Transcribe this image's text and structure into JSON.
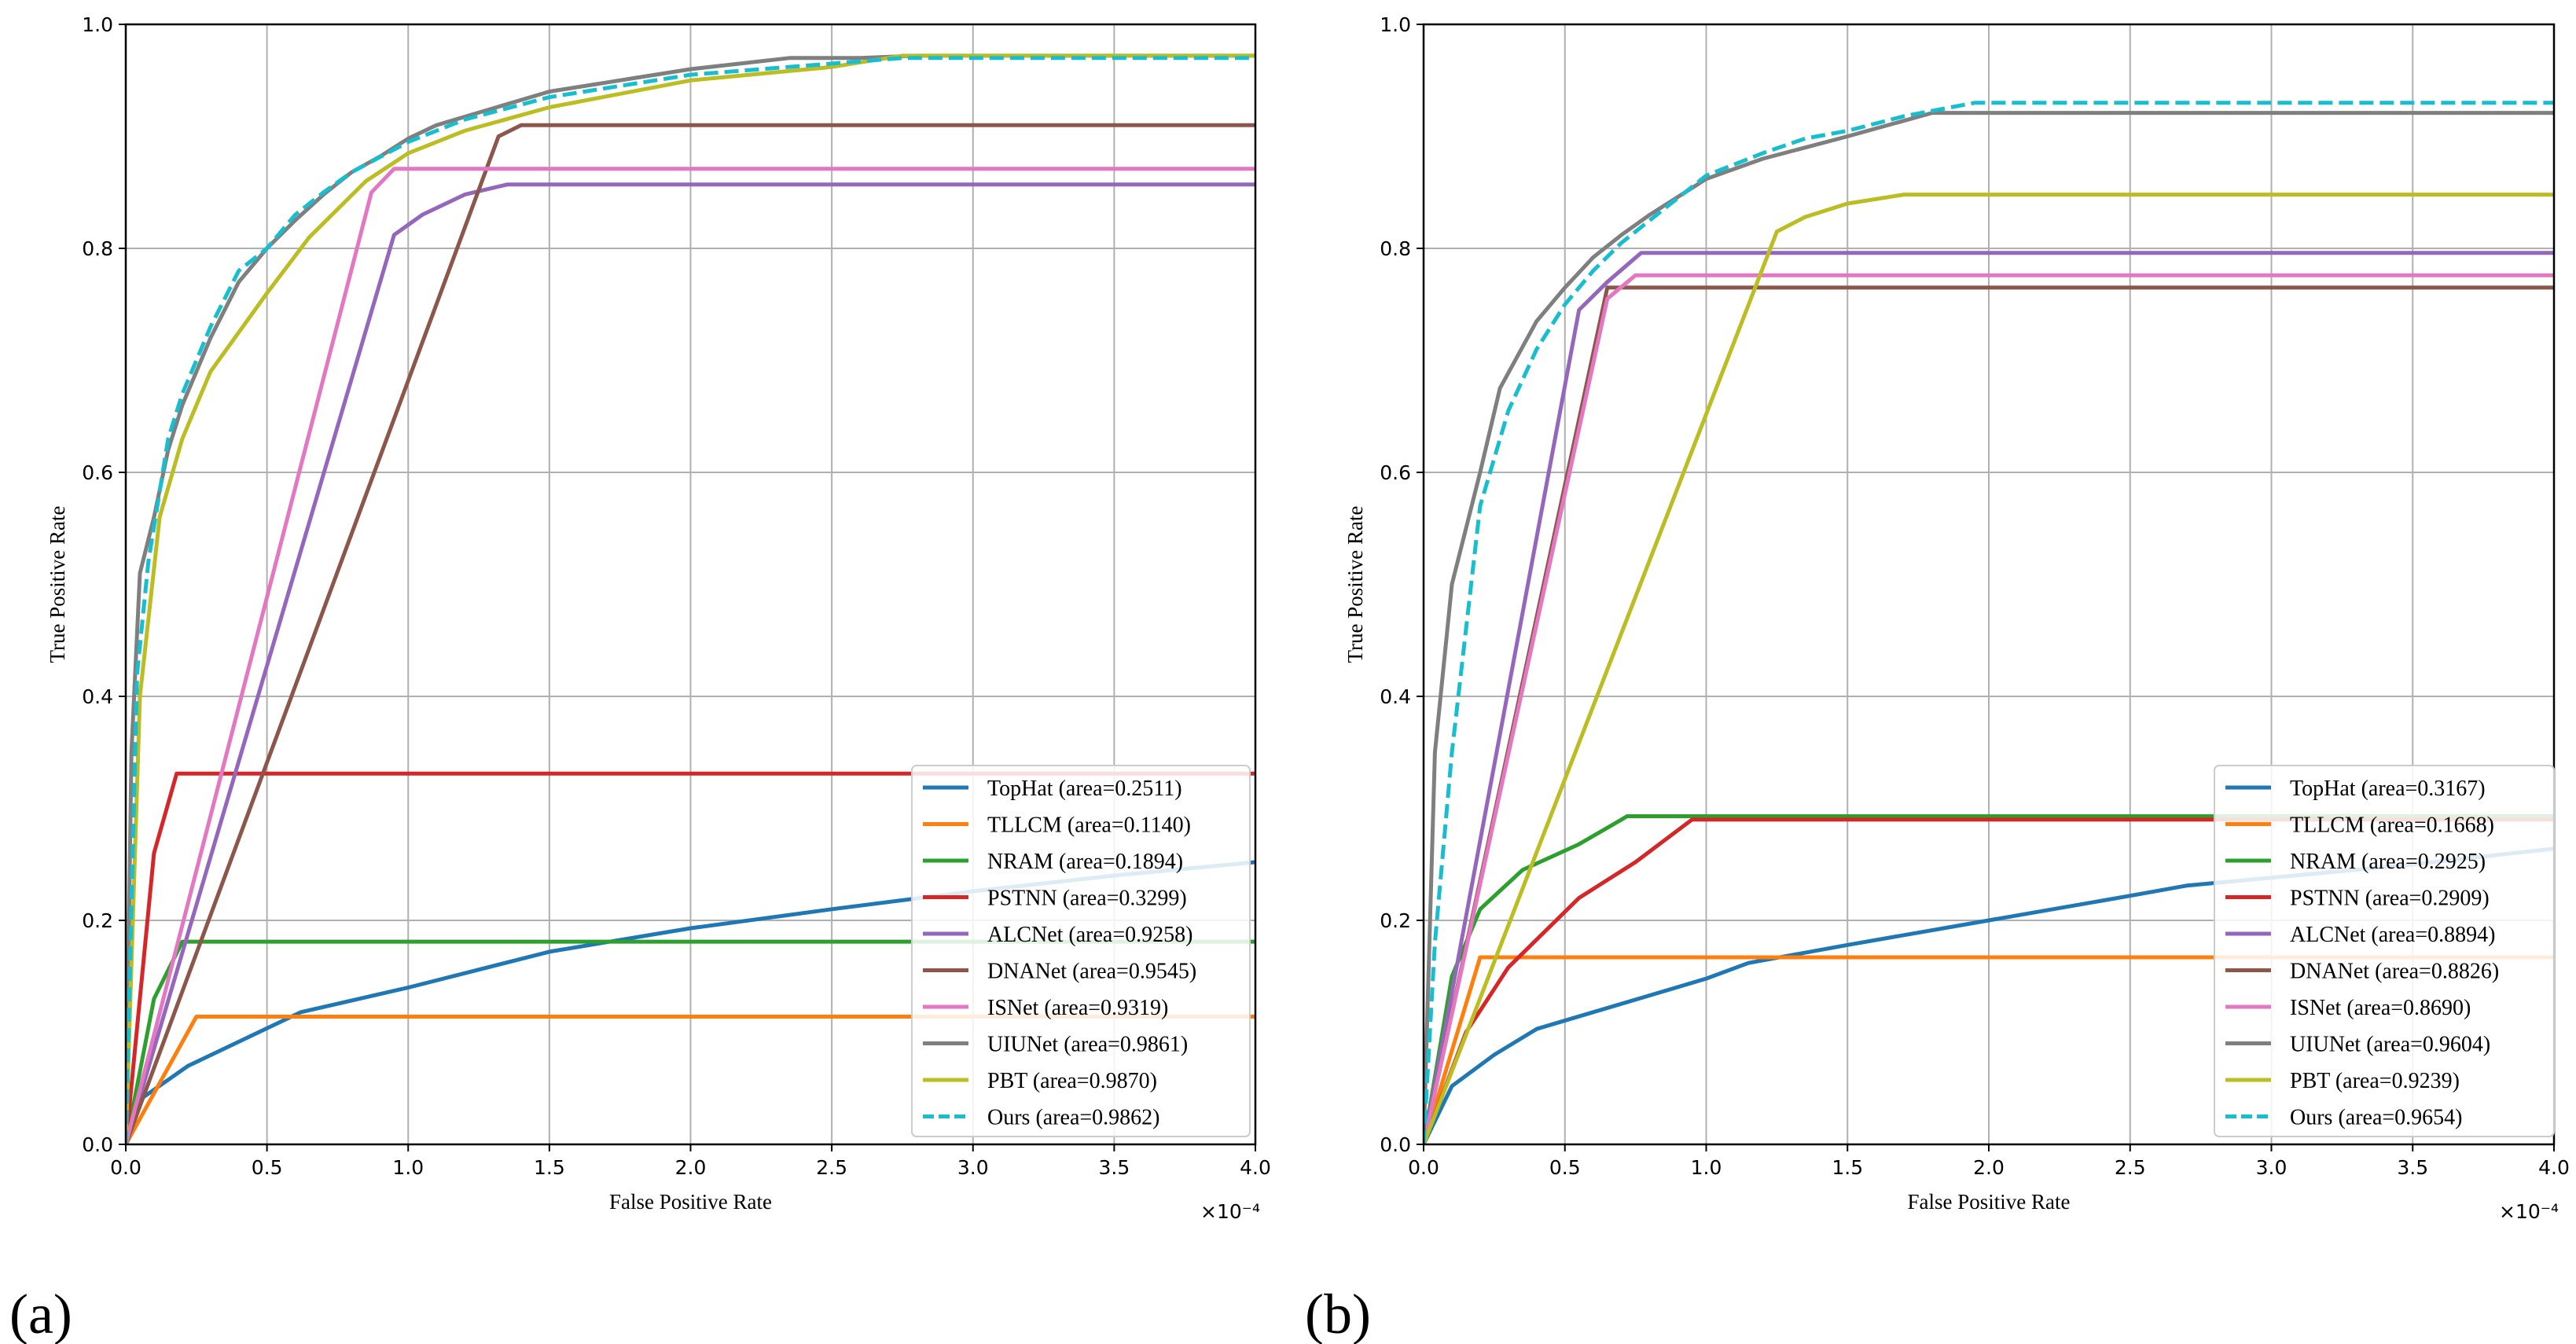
{
  "colors": {
    "TopHat": "#1f77b4",
    "TLLCM": "#ff7f0e",
    "NRAM": "#2ca02c",
    "PSTNN": "#d62728",
    "ALCNet": "#9467bd",
    "DNANet": "#8c564b",
    "ISNet": "#e377c2",
    "UIUNet": "#7f7f7f",
    "PBT": "#bcbd22",
    "Ours": "#17becf"
  },
  "chart_data": [
    {
      "panel": "(a)",
      "type": "line",
      "xlabel": "False Positive Rate",
      "ylabel": "True Positive Rate",
      "x_scale_note": "×10⁻⁴",
      "xlim": [
        0,
        4.0
      ],
      "ylim": [
        0,
        1.0
      ],
      "xticks": [
        "0.0",
        "0.5",
        "1.0",
        "1.5",
        "2.0",
        "2.5",
        "3.0",
        "3.5",
        "4.0"
      ],
      "yticks": [
        "0.0",
        "0.2",
        "0.4",
        "0.6",
        "0.8",
        "1.0"
      ],
      "grid": true,
      "legend_position": "lower-right",
      "series": [
        {
          "name": "TopHat",
          "label": "TopHat (area=0.2511)",
          "x": [
            0,
            0.05,
            0.22,
            0.62,
            1.0,
            1.5,
            2.0,
            2.5,
            3.0,
            3.5,
            4.0
          ],
          "y": [
            0,
            0.04,
            0.07,
            0.118,
            0.14,
            0.172,
            0.193,
            0.21,
            0.226,
            0.24,
            0.252
          ]
        },
        {
          "name": "TLLCM",
          "label": "TLLCM (area=0.1140)",
          "x": [
            0,
            0.25,
            4.0
          ],
          "y": [
            0,
            0.114,
            0.114
          ]
        },
        {
          "name": "NRAM",
          "label": "NRAM (area=0.1894)",
          "x": [
            0,
            0.1,
            0.2,
            4.0
          ],
          "y": [
            0,
            0.13,
            0.181,
            0.181
          ]
        },
        {
          "name": "PSTNN",
          "label": "PSTNN (area=0.3299)",
          "x": [
            0,
            0.1,
            0.18,
            4.0
          ],
          "y": [
            0,
            0.26,
            0.331,
            0.331
          ]
        },
        {
          "name": "ALCNet",
          "label": "ALCNet (area=0.9258)",
          "x": [
            0,
            0.95,
            1.05,
            1.2,
            1.35,
            4.0
          ],
          "y": [
            0,
            0.812,
            0.83,
            0.848,
            0.857,
            0.857
          ]
        },
        {
          "name": "DNANet",
          "label": "DNANet (area=0.9545)",
          "x": [
            0,
            1.32,
            1.4,
            4.0
          ],
          "y": [
            0,
            0.9,
            0.91,
            0.91
          ]
        },
        {
          "name": "ISNet",
          "label": "ISNet (area=0.9319)",
          "x": [
            0,
            0.87,
            0.95,
            4.0
          ],
          "y": [
            0,
            0.85,
            0.871,
            0.871
          ]
        },
        {
          "name": "UIUNet",
          "label": "UIUNet (area=0.9861)",
          "x": [
            0,
            0.02,
            0.05,
            0.1,
            0.15,
            0.2,
            0.3,
            0.4,
            0.5,
            0.6,
            0.7,
            0.8,
            0.9,
            1.0,
            1.1,
            1.3,
            1.5,
            1.8,
            2.0,
            2.35,
            2.6,
            2.8,
            4.0
          ],
          "y": [
            0,
            0.35,
            0.51,
            0.56,
            0.62,
            0.66,
            0.72,
            0.77,
            0.8,
            0.825,
            0.848,
            0.868,
            0.882,
            0.898,
            0.91,
            0.925,
            0.94,
            0.952,
            0.96,
            0.97,
            0.97,
            0.972,
            0.972
          ]
        },
        {
          "name": "PBT",
          "label": "PBT (area=0.9870)",
          "x": [
            0,
            0.05,
            0.12,
            0.2,
            0.3,
            0.5,
            0.65,
            0.85,
            1.0,
            1.2,
            1.5,
            2.0,
            2.5,
            2.75,
            4.0
          ],
          "y": [
            0,
            0.4,
            0.56,
            0.63,
            0.69,
            0.76,
            0.81,
            0.86,
            0.885,
            0.905,
            0.926,
            0.95,
            0.962,
            0.972,
            0.972
          ]
        },
        {
          "name": "Ours",
          "label": "Ours (area=0.9862)",
          "x": [
            0,
            0.04,
            0.08,
            0.15,
            0.2,
            0.3,
            0.4,
            0.5,
            0.6,
            0.7,
            0.8,
            1.0,
            1.2,
            1.5,
            2.0,
            2.5,
            2.75,
            4.0
          ],
          "y": [
            0,
            0.42,
            0.52,
            0.63,
            0.67,
            0.73,
            0.78,
            0.8,
            0.83,
            0.85,
            0.868,
            0.895,
            0.915,
            0.935,
            0.955,
            0.965,
            0.97,
            0.97
          ]
        }
      ]
    },
    {
      "panel": "(b)",
      "type": "line",
      "xlabel": "False Positive Rate",
      "ylabel": "True Positive Rate",
      "x_scale_note": "×10⁻⁴",
      "xlim": [
        0,
        4.0
      ],
      "ylim": [
        0,
        1.0
      ],
      "xticks": [
        "0.0",
        "0.5",
        "1.0",
        "1.5",
        "2.0",
        "2.5",
        "3.0",
        "3.5",
        "4.0"
      ],
      "yticks": [
        "0.0",
        "0.2",
        "0.4",
        "0.6",
        "0.8",
        "1.0"
      ],
      "grid": true,
      "legend_position": "lower-right",
      "series": [
        {
          "name": "TopHat",
          "label": "TopHat (area=0.3167)",
          "x": [
            0,
            0.1,
            0.25,
            0.4,
            0.6,
            0.8,
            1.0,
            1.15,
            1.5,
            2.0,
            2.5,
            2.7,
            3.0,
            3.5,
            4.0
          ],
          "y": [
            0,
            0.052,
            0.08,
            0.103,
            0.118,
            0.133,
            0.148,
            0.162,
            0.178,
            0.2,
            0.222,
            0.231,
            0.238,
            0.25,
            0.264
          ]
        },
        {
          "name": "TLLCM",
          "label": "TLLCM (area=0.1668)",
          "x": [
            0,
            0.2,
            4.0
          ],
          "y": [
            0,
            0.167,
            0.167
          ]
        },
        {
          "name": "NRAM",
          "label": "NRAM (area=0.2925)",
          "x": [
            0,
            0.1,
            0.2,
            0.35,
            0.55,
            0.7,
            0.72,
            4.0
          ],
          "y": [
            0,
            0.15,
            0.21,
            0.245,
            0.268,
            0.29,
            0.293,
            0.293
          ]
        },
        {
          "name": "PSTNN",
          "label": "PSTNN (area=0.2909)",
          "x": [
            0,
            0.15,
            0.3,
            0.55,
            0.75,
            0.95,
            4.0
          ],
          "y": [
            0,
            0.1,
            0.158,
            0.22,
            0.252,
            0.29,
            0.29
          ]
        },
        {
          "name": "ALCNet",
          "label": "ALCNet (area=0.8894)",
          "x": [
            0,
            0.55,
            0.65,
            0.77,
            4.0
          ],
          "y": [
            0,
            0.745,
            0.77,
            0.796,
            0.796
          ]
        },
        {
          "name": "DNANet",
          "label": "DNANet (area=0.8826)",
          "x": [
            0,
            0.65,
            4.0
          ],
          "y": [
            0,
            0.765,
            0.765
          ]
        },
        {
          "name": "ISNet",
          "label": "ISNet (area=0.8690)",
          "x": [
            0,
            0.65,
            0.75,
            4.0
          ],
          "y": [
            0,
            0.755,
            0.776,
            0.776
          ]
        },
        {
          "name": "UIUNet",
          "label": "UIUNet (area=0.9604)",
          "x": [
            0,
            0.04,
            0.1,
            0.2,
            0.27,
            0.4,
            0.5,
            0.6,
            0.7,
            0.8,
            1.0,
            1.2,
            1.5,
            1.8,
            4.0
          ],
          "y": [
            0,
            0.35,
            0.5,
            0.6,
            0.675,
            0.735,
            0.765,
            0.792,
            0.812,
            0.83,
            0.862,
            0.88,
            0.9,
            0.921,
            0.921
          ]
        },
        {
          "name": "PBT",
          "label": "PBT (area=0.9239)",
          "x": [
            0,
            1.25,
            1.35,
            1.5,
            1.7,
            4.0
          ],
          "y": [
            0,
            0.815,
            0.828,
            0.84,
            0.848,
            0.848
          ]
        },
        {
          "name": "Ours",
          "label": "Ours (area=0.9654)",
          "x": [
            0,
            0.04,
            0.1,
            0.2,
            0.3,
            0.4,
            0.5,
            0.6,
            0.7,
            0.8,
            1.0,
            1.2,
            1.35,
            1.5,
            1.7,
            1.95,
            4.0
          ],
          "y": [
            0,
            0.18,
            0.35,
            0.57,
            0.655,
            0.71,
            0.75,
            0.78,
            0.805,
            0.825,
            0.865,
            0.885,
            0.898,
            0.905,
            0.918,
            0.93,
            0.93
          ]
        }
      ]
    }
  ]
}
